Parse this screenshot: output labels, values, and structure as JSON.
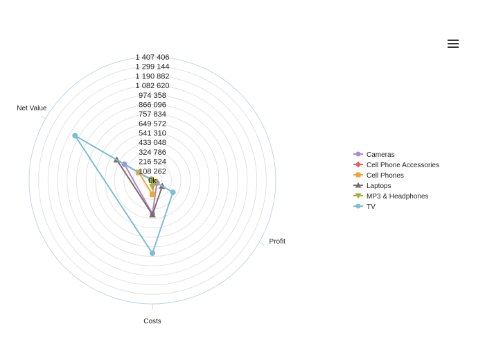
{
  "menu_icon": "hamburger-menu-icon",
  "chart_data": {
    "type": "radar",
    "axes": [
      "Profit",
      "Costs",
      "Net Value"
    ],
    "rlim": [
      0,
      1407406
    ],
    "ticks": [
      0,
      108262,
      216524,
      324786,
      433048,
      541310,
      649572,
      757834,
      866096,
      974358,
      1082620,
      1190882,
      1299144,
      1407406
    ],
    "tick_labels": [
      "0k",
      "108 262",
      "216 524",
      "324 786",
      "433 048",
      "541 310",
      "649 572",
      "757 834",
      "866 096",
      "974 358",
      "1 082 620",
      "1 190 882",
      "1 299 144",
      "1 407 406"
    ],
    "grid": true,
    "legend_position": "right",
    "series": [
      {
        "name": "Cameras",
        "color": "#b085d6",
        "marker": "circle",
        "values": [
          60000,
          380000,
          370000
        ]
      },
      {
        "name": "Cell Phone Accessories",
        "color": "#e8625d",
        "marker": "diamond",
        "values": [
          45000,
          10000,
          15000
        ]
      },
      {
        "name": "Cell Phones",
        "color": "#e9a93a",
        "marker": "square",
        "values": [
          25000,
          160000,
          180000
        ]
      },
      {
        "name": "Laptops",
        "color": "#7d6e6b",
        "marker": "triangle",
        "values": [
          130000,
          390000,
          470000
        ]
      },
      {
        "name": "MP3 & Headphones",
        "color": "#a5b23a",
        "marker": "triangle-down",
        "values": [
          30000,
          70000,
          20000
        ]
      },
      {
        "name": "TV",
        "color": "#79bfd6",
        "marker": "circle",
        "values": [
          270000,
          830000,
          1020000
        ]
      }
    ]
  }
}
